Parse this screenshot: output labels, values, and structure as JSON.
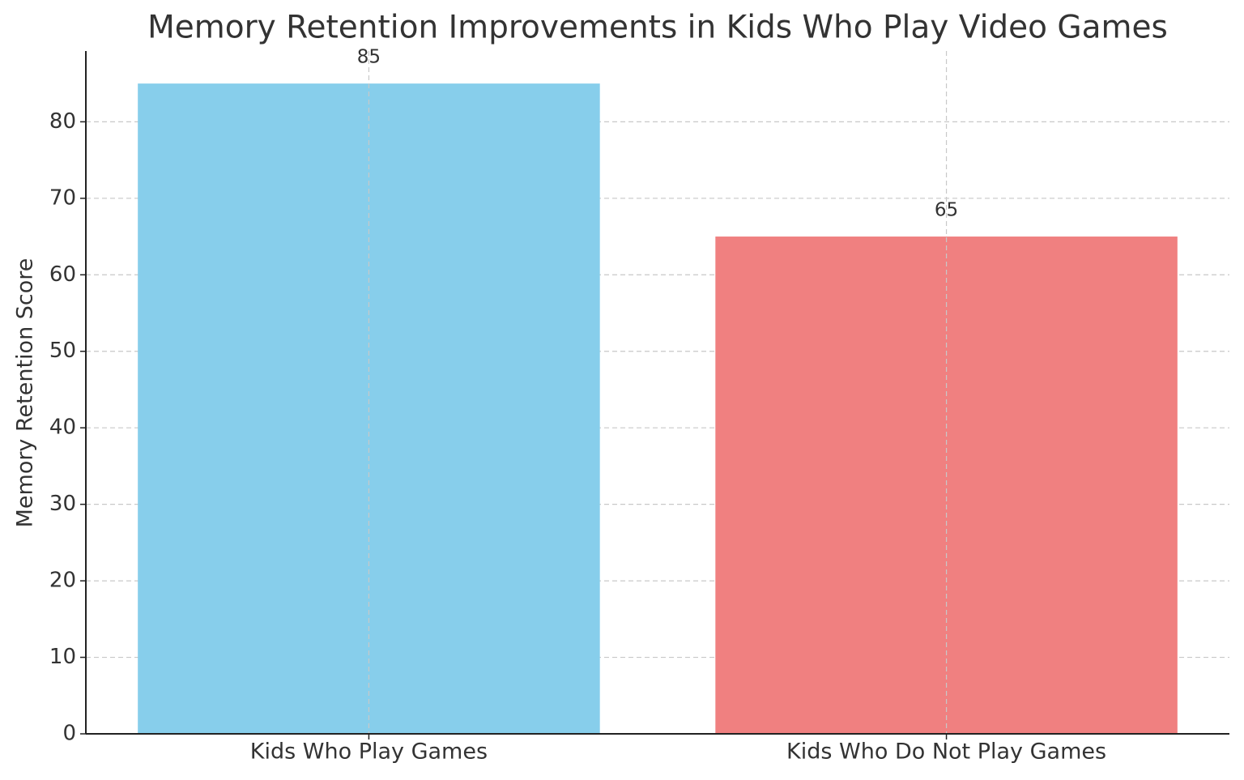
{
  "chart_data": {
    "type": "bar",
    "title": "Memory Retention Improvements in Kids Who Play Video Games",
    "ylabel": "Memory Retention Score",
    "categories": [
      "Kids Who Play Games",
      "Kids Who Do Not Play Games"
    ],
    "values": [
      85,
      65
    ],
    "colors": [
      "#87ceeb",
      "#f08080"
    ],
    "ylim": [
      0,
      89.25
    ],
    "yticks": [
      0,
      10,
      20,
      30,
      40,
      50,
      60,
      70,
      80
    ],
    "grid": true
  }
}
